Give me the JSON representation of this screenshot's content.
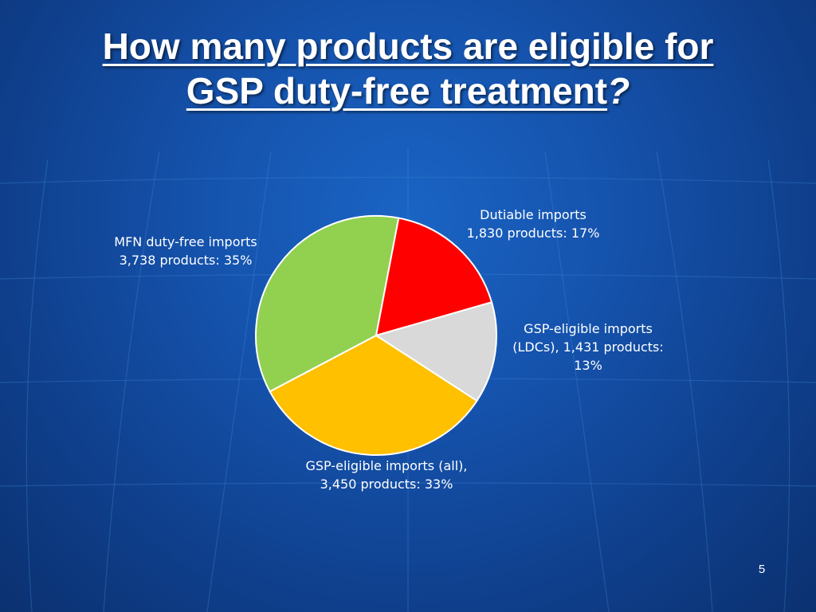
{
  "slide": {
    "title_line1": "How many products are eligible for",
    "title_line2": "GSP duty-free treatment",
    "title_suffix": "?",
    "page_number": "5"
  },
  "colors": {
    "background": "#1553ad",
    "text": "#ffffff",
    "slice_border": "#ffffff"
  },
  "chart_data": {
    "type": "pie",
    "title": "",
    "legend": "none",
    "slices": [
      {
        "category": "MFN duty-free imports",
        "value": 3738,
        "percent": 35,
        "color": "#92d050",
        "label_lines": [
          "MFN duty-free imports",
          "3,738 products: 35%"
        ]
      },
      {
        "category": "Dutiable imports",
        "value": 1830,
        "percent": 17,
        "color": "#ff0000",
        "label_lines": [
          "Dutiable imports",
          "1,830 products: 17%"
        ]
      },
      {
        "category": "GSP-eligible imports (LDCs)",
        "value": 1431,
        "percent": 13,
        "color": "#d9d9d9",
        "label_lines": [
          "GSP-eligible imports",
          "(LDCs), 1,431 products:",
          "13%"
        ]
      },
      {
        "category": "GSP-eligible imports (all)",
        "value": 3450,
        "percent": 33,
        "color": "#ffc000",
        "label_lines": [
          "GSP-eligible imports (all),",
          "3,450 products: 33%"
        ]
      }
    ]
  }
}
